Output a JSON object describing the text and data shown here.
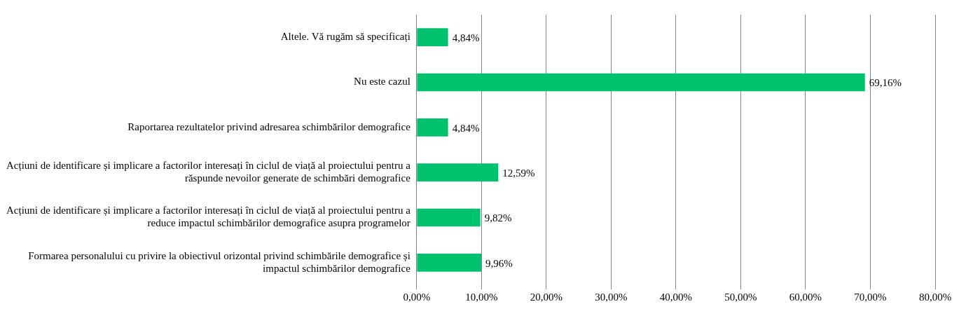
{
  "chart_data": {
    "type": "bar",
    "orientation": "horizontal",
    "categories": [
      "Altele. Vă rugăm să specificați",
      "Nu este cazul",
      "Raportarea rezultatelor privind adresarea schimbărilor demografice",
      "Acțiuni de identificare și implicare a factorilor interesați în ciclul de viață al proiectului pentru a răspunde nevoilor generate de schimbări demografice",
      "Acțiuni de identificare și implicare a factorilor interesați în ciclul de viață al proiectului pentru a reduce impactul schimbărilor demografice asupra programelor",
      "Formarea personalului cu privire la obiectivul orizontal privind schimbările demografice și impactul schimbărilor demografice"
    ],
    "values": [
      4.84,
      69.16,
      4.84,
      12.59,
      9.82,
      9.96
    ],
    "value_labels": [
      "4,84%",
      "69,16%",
      "4,84%",
      "12,59%",
      "9,82%",
      "9,96%"
    ],
    "color": "#00c16e",
    "xlim": [
      0,
      80
    ],
    "xticks": [
      {
        "value": 0,
        "label": "0,00%"
      },
      {
        "value": 10,
        "label": "10,00%"
      },
      {
        "value": 20,
        "label": "20,00%"
      },
      {
        "value": 30,
        "label": "30,00%"
      },
      {
        "value": 40,
        "label": "40,00%"
      },
      {
        "value": 50,
        "label": "50,00%"
      },
      {
        "value": 60,
        "label": "60,00%"
      },
      {
        "value": 70,
        "label": "70,00%"
      },
      {
        "value": 80,
        "label": "80,00%"
      }
    ],
    "grid": "x"
  }
}
